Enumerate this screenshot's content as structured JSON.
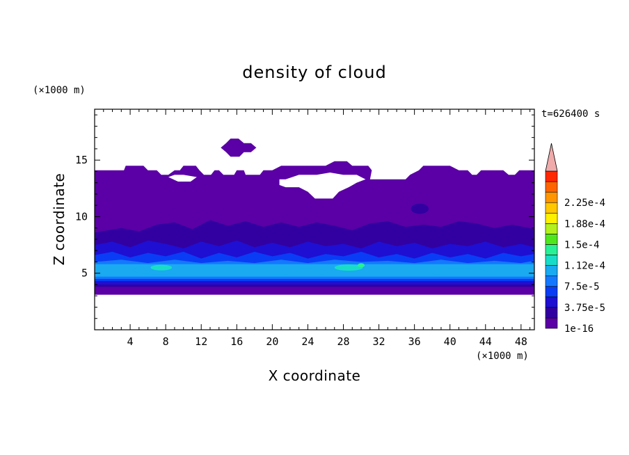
{
  "chart_data": {
    "type": "heatmap",
    "title": "density of cloud",
    "xlabel": "X coordinate",
    "ylabel": "Z coordinate",
    "x_unit": "(×1000 m)",
    "y_unit": "(×1000 m)",
    "time_label": "t=626400 s",
    "xlim": [
      0,
      49.5
    ],
    "ylim": [
      0,
      19.5
    ],
    "x_ticks": [
      4,
      8,
      12,
      16,
      20,
      24,
      28,
      32,
      36,
      40,
      44,
      48
    ],
    "y_ticks": [
      5,
      10,
      15
    ],
    "colorbar": {
      "labels": [
        "1e-16",
        "3.75e-5",
        "7.5e-5",
        "1.12e-4",
        "1.5e-4",
        "1.88e-4",
        "2.25e-4"
      ],
      "colors": [
        "#5a00a6",
        "#3200a0",
        "#1e0fd2",
        "#0a3cf5",
        "#1478ff",
        "#19aaf0",
        "#19dcc8",
        "#28f096",
        "#50e61e",
        "#b4f01e",
        "#fff000",
        "#ffc800",
        "#ff9600",
        "#ff6400",
        "#ff2800",
        "#f0aaaa"
      ],
      "extend": "max"
    },
    "layers": [
      {
        "level": 0,
        "top_profile": [
          [
            0,
            14.1
          ],
          [
            3.3,
            14.1
          ],
          [
            3.5,
            14.5
          ],
          [
            5.5,
            14.5
          ],
          [
            6,
            14.1
          ],
          [
            7,
            14.1
          ],
          [
            7.5,
            13.7
          ],
          [
            8.3,
            13.7
          ],
          [
            9,
            14.1
          ],
          [
            9.6,
            14.1
          ],
          [
            10,
            14.5
          ],
          [
            11.4,
            14.5
          ],
          [
            11.8,
            14.1
          ],
          [
            12.3,
            13.7
          ],
          [
            13.1,
            13.7
          ],
          [
            13.5,
            14.1
          ],
          [
            14,
            14.1
          ],
          [
            14.5,
            13.7
          ],
          [
            15.7,
            13.7
          ],
          [
            16,
            14.1
          ],
          [
            16.8,
            14.1
          ],
          [
            17,
            13.7
          ],
          [
            18.6,
            13.7
          ],
          [
            19,
            14.1
          ],
          [
            20,
            14.1
          ],
          [
            21,
            14.5
          ],
          [
            23,
            14.5
          ],
          [
            25,
            14.5
          ],
          [
            26,
            14.5
          ],
          [
            27,
            14.9
          ],
          [
            28.4,
            14.9
          ],
          [
            29,
            14.5
          ],
          [
            30.8,
            14.5
          ],
          [
            31.2,
            14.1
          ],
          [
            31,
            13.3
          ],
          [
            35,
            13.3
          ],
          [
            35.5,
            13.7
          ],
          [
            36.5,
            14.1
          ],
          [
            37,
            14.5
          ],
          [
            40,
            14.5
          ],
          [
            41,
            14.1
          ],
          [
            42,
            14.1
          ],
          [
            42.5,
            13.7
          ],
          [
            43,
            13.7
          ],
          [
            43.5,
            14.1
          ],
          [
            46,
            14.1
          ],
          [
            46.6,
            13.7
          ],
          [
            47.3,
            13.7
          ],
          [
            47.8,
            14.1
          ],
          [
            49.5,
            14.1
          ]
        ],
        "bottom_profile": [
          [
            0,
            3.1
          ],
          [
            49.5,
            3.1
          ]
        ]
      },
      {
        "level": 1,
        "top_profile": [
          [
            0,
            8.6
          ],
          [
            3,
            9
          ],
          [
            5,
            8.7
          ],
          [
            7,
            9.3
          ],
          [
            9,
            9.5
          ],
          [
            11,
            8.9
          ],
          [
            13,
            9.7
          ],
          [
            15,
            9.2
          ],
          [
            17,
            9.6
          ],
          [
            19,
            9.1
          ],
          [
            21,
            9.5
          ],
          [
            23,
            9.1
          ],
          [
            25,
            9.5
          ],
          [
            27,
            9.2
          ],
          [
            29,
            8.8
          ],
          [
            31,
            9.4
          ],
          [
            33,
            9.6
          ],
          [
            35,
            9.1
          ],
          [
            37,
            9.3
          ],
          [
            39,
            9.1
          ],
          [
            41,
            9.6
          ],
          [
            43,
            9.4
          ],
          [
            45,
            9.0
          ],
          [
            47,
            9.3
          ],
          [
            49.5,
            8.9
          ]
        ],
        "bottom_profile": [
          [
            0,
            3.8
          ],
          [
            49.5,
            3.8
          ]
        ]
      },
      {
        "level": 2,
        "top_profile": [
          [
            0,
            7.5
          ],
          [
            2,
            7.8
          ],
          [
            4,
            7.3
          ],
          [
            6,
            7.9
          ],
          [
            8,
            7.6
          ],
          [
            10,
            7.2
          ],
          [
            12,
            7.8
          ],
          [
            14,
            7.4
          ],
          [
            16,
            7.9
          ],
          [
            18,
            7.3
          ],
          [
            20,
            7.7
          ],
          [
            22,
            7.3
          ],
          [
            24,
            7.8
          ],
          [
            26,
            7.4
          ],
          [
            28,
            7.6
          ],
          [
            30,
            7.2
          ],
          [
            32,
            7.8
          ],
          [
            34,
            7.4
          ],
          [
            36,
            7.7
          ],
          [
            38,
            7.2
          ],
          [
            40,
            7.6
          ],
          [
            42,
            7.4
          ],
          [
            44,
            7.8
          ],
          [
            46,
            7.3
          ],
          [
            48,
            7.6
          ],
          [
            49.5,
            7.3
          ]
        ],
        "bottom_profile": [
          [
            0,
            4.0
          ],
          [
            49.5,
            4.0
          ]
        ]
      },
      {
        "level": 3,
        "top_profile": [
          [
            0,
            6.6
          ],
          [
            2,
            6.9
          ],
          [
            4,
            6.4
          ],
          [
            6,
            6.8
          ],
          [
            8,
            6.5
          ],
          [
            10,
            6.9
          ],
          [
            12,
            6.3
          ],
          [
            14,
            6.8
          ],
          [
            16,
            6.4
          ],
          [
            18,
            6.9
          ],
          [
            20,
            6.5
          ],
          [
            22,
            6.8
          ],
          [
            24,
            6.3
          ],
          [
            26,
            6.7
          ],
          [
            28,
            6.5
          ],
          [
            30,
            6.9
          ],
          [
            32,
            6.4
          ],
          [
            34,
            6.7
          ],
          [
            36,
            6.3
          ],
          [
            38,
            6.8
          ],
          [
            40,
            6.4
          ],
          [
            42,
            6.7
          ],
          [
            44,
            6.3
          ],
          [
            46,
            6.8
          ],
          [
            48,
            6.5
          ],
          [
            49.5,
            6.7
          ]
        ],
        "bottom_profile": [
          [
            0,
            4.3
          ],
          [
            49.5,
            4.3
          ]
        ]
      },
      {
        "level": 4,
        "top_profile": [
          [
            0,
            6.0
          ],
          [
            3,
            6.2
          ],
          [
            6,
            5.9
          ],
          [
            9,
            6.2
          ],
          [
            12,
            5.9
          ],
          [
            15,
            6.1
          ],
          [
            18,
            5.9
          ],
          [
            21,
            6.2
          ],
          [
            24,
            5.9
          ],
          [
            27,
            6.2
          ],
          [
            30,
            6.0
          ],
          [
            33,
            6.1
          ],
          [
            36,
            5.9
          ],
          [
            39,
            6.2
          ],
          [
            42,
            5.9
          ],
          [
            45,
            6.1
          ],
          [
            48,
            5.9
          ],
          [
            49.5,
            6.1
          ]
        ],
        "bottom_profile": [
          [
            0,
            4.5
          ],
          [
            49.5,
            4.5
          ]
        ]
      },
      {
        "level": 5,
        "top_profile": [
          [
            0,
            5.8
          ],
          [
            49.5,
            5.8
          ]
        ],
        "bottom_profile": [
          [
            0,
            4.7
          ],
          [
            49.5,
            4.7
          ]
        ]
      }
    ],
    "holes": [
      [
        [
          20.8,
          12.8
        ],
        [
          21.5,
          12.6
        ],
        [
          23,
          12.6
        ],
        [
          24,
          12.2
        ],
        [
          24.8,
          11.6
        ],
        [
          26.8,
          11.6
        ],
        [
          27.5,
          12.2
        ],
        [
          28.6,
          12.6
        ],
        [
          29.5,
          13.0
        ],
        [
          30.5,
          13.3
        ],
        [
          29.5,
          13.7
        ],
        [
          28,
          13.7
        ],
        [
          26.5,
          13.9
        ],
        [
          25,
          13.7
        ],
        [
          23,
          13.7
        ],
        [
          21.5,
          13.3
        ],
        [
          20.8,
          13.3
        ]
      ],
      [
        [
          8.3,
          13.5
        ],
        [
          9.4,
          13.1
        ],
        [
          10.8,
          13.1
        ],
        [
          11.5,
          13.5
        ],
        [
          10,
          13.7
        ],
        [
          9,
          13.7
        ]
      ]
    ],
    "blobs": [
      {
        "level": 0,
        "points": [
          [
            14.2,
            16.1
          ],
          [
            14.8,
            16.5
          ],
          [
            15.3,
            16.9
          ],
          [
            16.2,
            16.9
          ],
          [
            16.8,
            16.5
          ],
          [
            17.6,
            16.5
          ],
          [
            18.2,
            16.1
          ],
          [
            17.6,
            15.7
          ],
          [
            16.8,
            15.7
          ],
          [
            16.3,
            15.3
          ],
          [
            15.3,
            15.3
          ],
          [
            14.8,
            15.7
          ]
        ]
      }
    ],
    "spots": [
      {
        "level": 1,
        "cx": 36.6,
        "cy": 10.7,
        "rx": 1.0,
        "ry": 0.45
      },
      {
        "level": 5,
        "cx": 7.3,
        "cy": 5.3,
        "rx": 3.0,
        "ry": 0.4
      },
      {
        "level": 5,
        "cx": 23.5,
        "cy": 5.1,
        "rx": 2.6,
        "ry": 0.35
      },
      {
        "level": 5,
        "cx": 41.0,
        "cy": 5.1,
        "rx": 3.2,
        "ry": 0.35
      },
      {
        "level": 6,
        "cx": 7.5,
        "cy": 5.5,
        "rx": 1.2,
        "ry": 0.25
      },
      {
        "level": 6,
        "cx": 28.6,
        "cy": 5.5,
        "rx": 1.6,
        "ry": 0.28
      },
      {
        "level": 7,
        "cx": 30.0,
        "cy": 5.7,
        "rx": 0.4,
        "ry": 0.18
      }
    ]
  }
}
